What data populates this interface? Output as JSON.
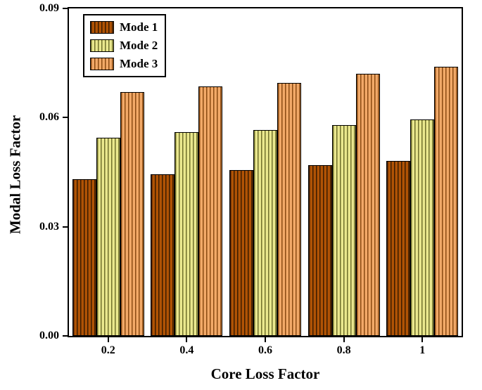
{
  "chart_data": {
    "type": "bar",
    "title": "",
    "xlabel": "Core Loss Factor",
    "ylabel": "Modal Loss Factor",
    "categories": [
      "0.2",
      "0.4",
      "0.6",
      "0.8",
      "1"
    ],
    "series": [
      {
        "name": "Mode 1",
        "color": "#b05305",
        "hatch_color": "#3c1c00",
        "values": [
          0.043,
          0.0445,
          0.0455,
          0.047,
          0.048
        ]
      },
      {
        "name": "Mode 2",
        "color": "#eae88e",
        "hatch_color": "#70702c",
        "values": [
          0.0545,
          0.056,
          0.0565,
          0.058,
          0.0595
        ]
      },
      {
        "name": "Mode 3",
        "color": "#f2a968",
        "hatch_color": "#8a4a12",
        "values": [
          0.067,
          0.0685,
          0.0695,
          0.072,
          0.074
        ]
      }
    ],
    "ylim": [
      0,
      0.09
    ],
    "yticks": [
      "0.00",
      "0.03",
      "0.06",
      "0.09"
    ],
    "grid": false,
    "legend_position": "top-left",
    "hatch_style": "vertical-lines"
  }
}
